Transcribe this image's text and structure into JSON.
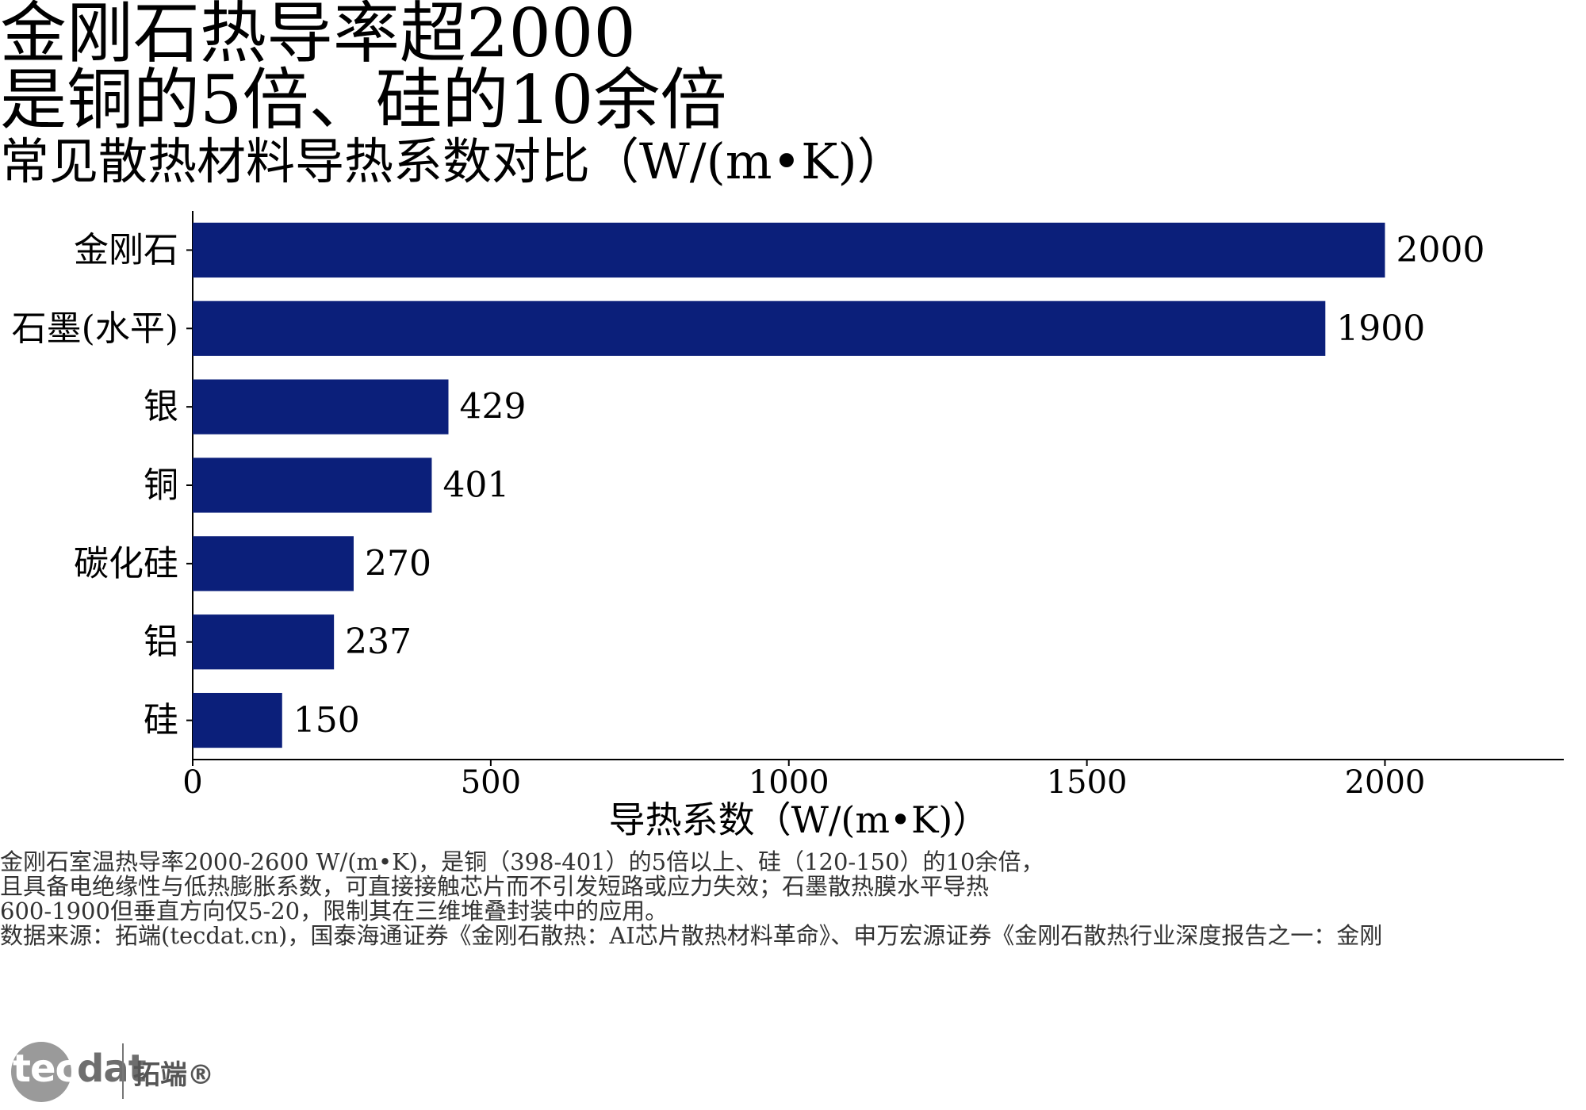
{
  "title": {
    "line1": "金刚石热导率超2000",
    "line2": "是铜的5倍、硅的10余倍",
    "subtitle": "常见散热材料导热系数对比（W/(m•K)）"
  },
  "chart_data": {
    "type": "bar",
    "orientation": "horizontal",
    "categories": [
      "金刚石",
      "石墨(水平)",
      "银",
      "铜",
      "碳化硅",
      "铝",
      "硅"
    ],
    "values": [
      2000,
      1900,
      429,
      401,
      270,
      237,
      150
    ],
    "xlabel": "导热系数（W/(m•K)）",
    "ylabel": "",
    "xlim": [
      0,
      2300
    ],
    "xticks": [
      0,
      500,
      1000,
      1500,
      2000
    ],
    "grid": false,
    "legend": "none",
    "bar_color": "#0b1f7a"
  },
  "notes": [
    "金刚石室温热导率2000-2600 W/(m•K)，是铜（398-401）的5倍以上、硅（120-150）的10余倍，",
    "且具备电绝缘性与低热膨胀系数，可直接接触芯片而不引发短路或应力失效；石墨散热膜水平导热",
    "600-1900但垂直方向仅5-20，限制其在三维堆叠封装中的应用。",
    "数据来源：拓端(tecdat.cn)，国泰海通证券《金刚石散热：AI芯片散热材料革命》、申万宏源证券《金刚石散热行业深度报告之一：金刚"
  ],
  "logo": {
    "word_lead": "tec",
    "word_rest": "dat",
    "cn": "拓端®"
  }
}
